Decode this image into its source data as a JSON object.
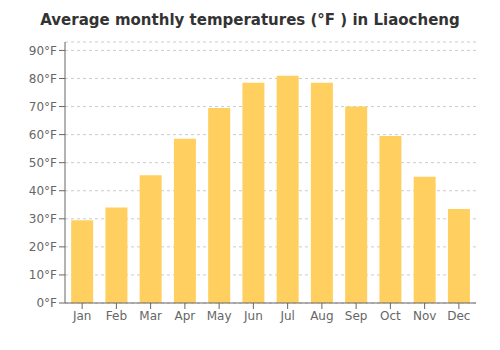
{
  "chart_data": {
    "type": "bar",
    "title": "Average monthly temperatures (°F ) in Liaocheng",
    "categories": [
      "Jan",
      "Feb",
      "Mar",
      "Apr",
      "May",
      "Jun",
      "Jul",
      "Aug",
      "Sep",
      "Oct",
      "Nov",
      "Dec"
    ],
    "values": [
      29.5,
      34.0,
      45.5,
      58.5,
      69.5,
      78.5,
      81.0,
      78.5,
      70.0,
      59.5,
      45.0,
      33.5
    ],
    "color": "#FFD060",
    "ylim": [
      0,
      93
    ],
    "yticks": [
      {
        "value": 0,
        "label": "0°F"
      },
      {
        "value": 10,
        "label": "10°F"
      },
      {
        "value": 20,
        "label": "20°F"
      },
      {
        "value": 30,
        "label": "30°F"
      },
      {
        "value": 40,
        "label": "40°F"
      },
      {
        "value": 50,
        "label": "50°F"
      },
      {
        "value": 60,
        "label": "60°F"
      },
      {
        "value": 70,
        "label": "70°F"
      },
      {
        "value": 80,
        "label": "80°F"
      },
      {
        "value": 90,
        "label": "90°F"
      }
    ],
    "grid": true
  }
}
